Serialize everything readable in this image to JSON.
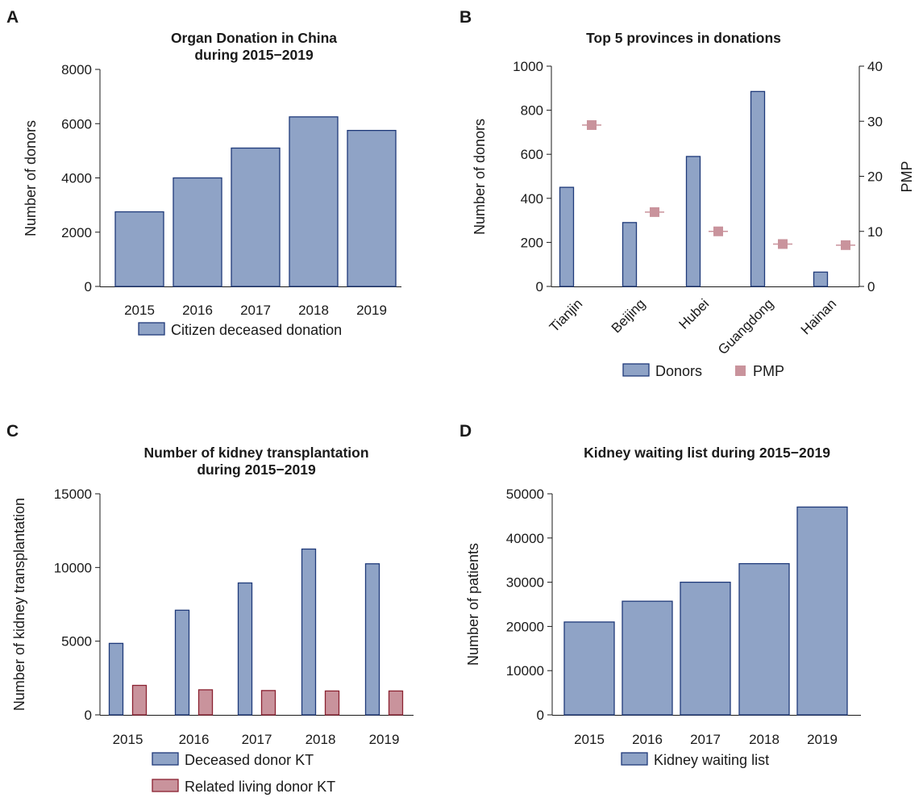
{
  "colors": {
    "blue_fill": "#8fa3c6",
    "blue_stroke": "#1f3a7a",
    "red_fill": "#c9939c",
    "red_stroke": "#8a2130",
    "axis": "#1a1a1a"
  },
  "panels": [
    {
      "letter": "A"
    },
    {
      "letter": "B"
    },
    {
      "letter": "C"
    },
    {
      "letter": "D"
    }
  ],
  "chart_data": [
    {
      "type": "bar",
      "title": [
        "Organ Donation in China",
        "during 2015−2019"
      ],
      "ylabel": "Number of donors",
      "xlabel": "",
      "categories": [
        "2015",
        "2016",
        "2017",
        "2018",
        "2019"
      ],
      "series": [
        {
          "name": "Citizen deceased donation",
          "values": [
            2750,
            4000,
            5100,
            6250,
            5750
          ]
        }
      ],
      "ylim": [
        0,
        8000
      ],
      "yticks": [
        0,
        2000,
        4000,
        6000,
        8000
      ],
      "legend": "bottom"
    },
    {
      "type": "bar",
      "title": [
        "Top 5 provinces in donations"
      ],
      "ylabel": "Number of donors",
      "y2label": "PMP",
      "categories": [
        "Tianjin",
        "Beijing",
        "Hubei",
        "Guangdong",
        "Hainan"
      ],
      "series": [
        {
          "name": "Donors",
          "values": [
            450,
            290,
            590,
            885,
            65
          ]
        },
        {
          "name": "PMP",
          "values": [
            29.3,
            13.5,
            10.0,
            7.7,
            7.5
          ],
          "axis": "right",
          "marker": "square"
        }
      ],
      "ylim": [
        0,
        1000
      ],
      "yticks": [
        0,
        200,
        400,
        600,
        800,
        1000
      ],
      "y2lim": [
        0,
        40
      ],
      "y2ticks": [
        0,
        10,
        20,
        30,
        40
      ],
      "legend": "bottom"
    },
    {
      "type": "bar",
      "title": [
        "Number of kidney transplantation",
        "during 2015−2019"
      ],
      "ylabel": "Number of kidney transplantation",
      "categories": [
        "2015",
        "2016",
        "2017",
        "2018",
        "2019"
      ],
      "series": [
        {
          "name": "Deceased donor KT",
          "values": [
            4850,
            7100,
            8950,
            11250,
            10250
          ]
        },
        {
          "name": "Related living donor KT",
          "values": [
            2000,
            1700,
            1650,
            1620,
            1620
          ]
        }
      ],
      "ylim": [
        0,
        15000
      ],
      "yticks": [
        0,
        5000,
        10000,
        15000
      ],
      "legend": "bottom"
    },
    {
      "type": "bar",
      "title": [
        "Kidney waiting list during 2015−2019"
      ],
      "ylabel": "Number of patients",
      "categories": [
        "2015",
        "2016",
        "2017",
        "2018",
        "2019"
      ],
      "series": [
        {
          "name": "Kidney waiting list",
          "values": [
            21000,
            25700,
            30000,
            34200,
            47000
          ]
        }
      ],
      "ylim": [
        0,
        50000
      ],
      "yticks": [
        0,
        10000,
        20000,
        30000,
        40000,
        50000
      ],
      "legend": "bottom"
    }
  ]
}
